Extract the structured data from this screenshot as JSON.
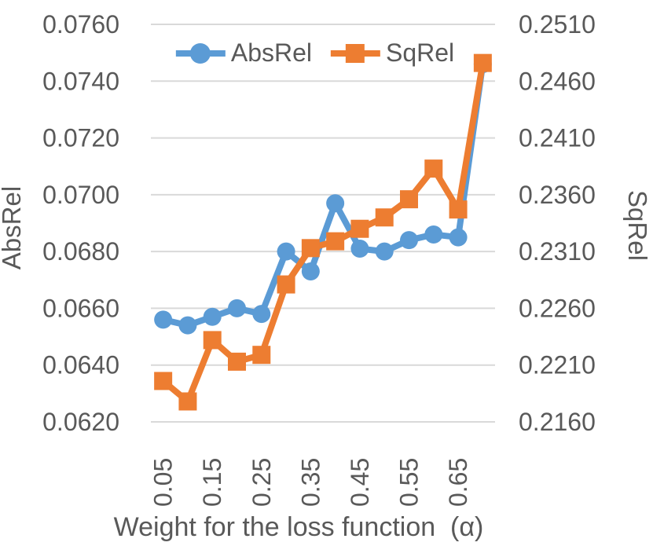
{
  "chart_data": {
    "type": "line",
    "title": "",
    "xlabel": "Weight for the loss function  (α)",
    "categories": [
      "0.05",
      "0.10",
      "0.15",
      "0.20",
      "0.25",
      "0.30",
      "0.35",
      "0.40",
      "0.45",
      "0.50",
      "0.55",
      "0.60",
      "0.65",
      "0.70"
    ],
    "x_label_interval": 2,
    "x_tick_labels_shown": [
      "0.05",
      "0.15",
      "0.25",
      "0.35",
      "0.45",
      "0.55",
      "0.65"
    ],
    "left_axis": {
      "label": "AbsRel",
      "min": 0.062,
      "max": 0.076,
      "step": 0.002,
      "tick_labels": [
        "0.0620",
        "0.0640",
        "0.0660",
        "0.0680",
        "0.0700",
        "0.0720",
        "0.0740",
        "0.0760"
      ]
    },
    "right_axis": {
      "label": "SqRel",
      "min": 0.216,
      "max": 0.251,
      "step": 0.005,
      "tick_labels": [
        "0.2160",
        "0.2210",
        "0.2260",
        "0.2310",
        "0.2360",
        "0.2410",
        "0.2460",
        "0.2510"
      ]
    },
    "series": [
      {
        "name": "AbsRel",
        "axis": "left",
        "color": "#5B9BD5",
        "marker": "circle",
        "values": [
          0.0656,
          0.0654,
          0.0657,
          0.066,
          0.0658,
          0.068,
          0.0673,
          0.0697,
          0.0681,
          0.068,
          0.0684,
          0.0686,
          0.0685,
          0.0746
        ]
      },
      {
        "name": "SqRel",
        "axis": "right",
        "color": "#ED7D31",
        "marker": "square",
        "values": [
          0.2196,
          0.2178,
          0.2232,
          0.2213,
          0.2219,
          0.2281,
          0.2313,
          0.2319,
          0.233,
          0.234,
          0.2356,
          0.2383,
          0.2347,
          0.2476
        ]
      }
    ],
    "grid": true,
    "legend_position": "top-center"
  },
  "styles": {
    "background": "#FFFFFF",
    "text_color": "#595959",
    "gridline_color": "#D9D9D9"
  }
}
